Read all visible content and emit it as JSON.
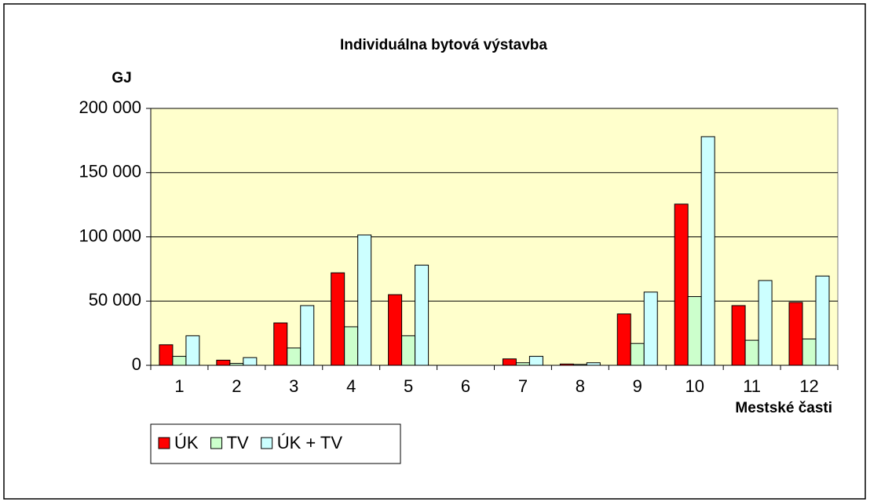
{
  "chart_data": {
    "type": "bar",
    "title": "Individuálna bytová výstavba",
    "y_axis_label": "GJ",
    "x_axis_label": "Mestské časti",
    "categories": [
      "1",
      "2",
      "3",
      "4",
      "5",
      "6",
      "7",
      "8",
      "9",
      "10",
      "11",
      "12"
    ],
    "series": [
      {
        "name": "ÚK",
        "color": "#ff0000",
        "values": [
          16000,
          4000,
          33000,
          72000,
          55000,
          0,
          5000,
          1000,
          40000,
          125500,
          46500,
          49000
        ]
      },
      {
        "name": "TV",
        "color": "#ccffcc",
        "values": [
          7000,
          1500,
          13500,
          30000,
          23000,
          0,
          2000,
          700,
          17000,
          53500,
          19500,
          20500
        ]
      },
      {
        "name": "ÚK + TV",
        "color": "#ccffff",
        "values": [
          23000,
          6000,
          46500,
          101500,
          78000,
          0,
          7000,
          2000,
          57000,
          178000,
          66000,
          69500
        ]
      }
    ],
    "ylim": [
      0,
      200000
    ],
    "yticks": [
      0,
      {
        "value": 50000,
        "label": "50 000"
      },
      {
        "value": 100000,
        "label": "100 000"
      },
      {
        "value": 150000,
        "label": "150 000"
      },
      {
        "value": 200000,
        "label": "200 000"
      }
    ],
    "grid": true,
    "legend": "bottom-left"
  }
}
